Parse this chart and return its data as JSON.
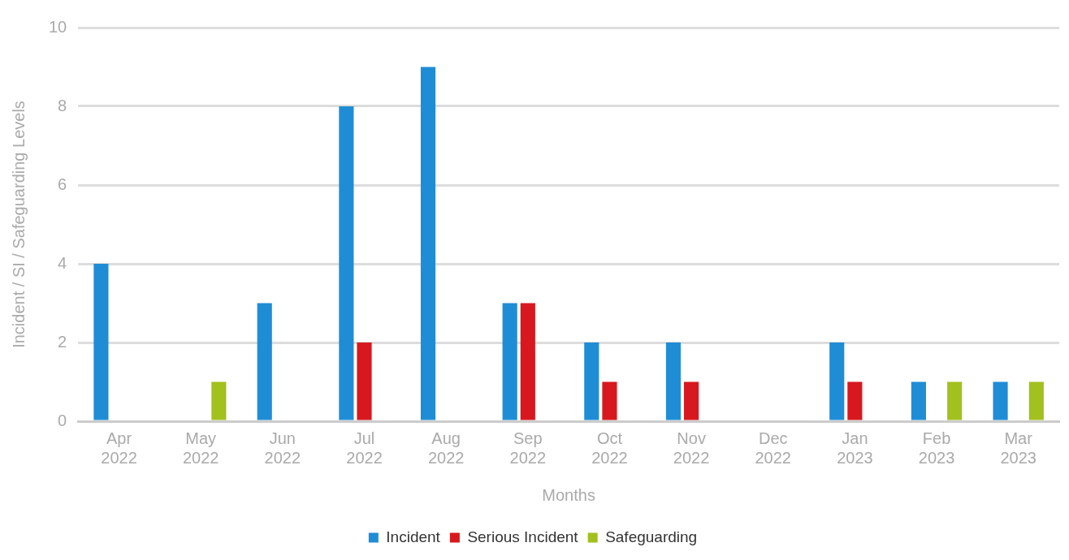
{
  "chart_data": {
    "type": "bar",
    "xlabel": "Months",
    "ylabel": "Incident / SI / Safeguarding Levels",
    "categories": [
      "Apr 2022",
      "May 2022",
      "Jun 2022",
      "Jul 2022",
      "Aug 2022",
      "Sep 2022",
      "Oct 2022",
      "Nov 2022",
      "Dec 2022",
      "Jan 2023",
      "Feb 2023",
      "Mar 2023"
    ],
    "series": [
      {
        "name": "Incident",
        "color": "#1f8dd6",
        "values": [
          4,
          0,
          3,
          8,
          9,
          3,
          2,
          2,
          0,
          2,
          1,
          1
        ]
      },
      {
        "name": "Serious Incident",
        "color": "#d7191f",
        "values": [
          0,
          0,
          0,
          2,
          0,
          3,
          1,
          1,
          0,
          1,
          0,
          0
        ]
      },
      {
        "name": "Safeguarding",
        "color": "#a2c01e",
        "values": [
          0,
          1,
          0,
          0,
          0,
          0,
          0,
          0,
          0,
          0,
          1,
          1
        ]
      }
    ],
    "ylim": [
      0,
      10
    ],
    "yticks": [
      0,
      2,
      4,
      6,
      8,
      10
    ],
    "grid": "y",
    "legend": "bottom"
  }
}
